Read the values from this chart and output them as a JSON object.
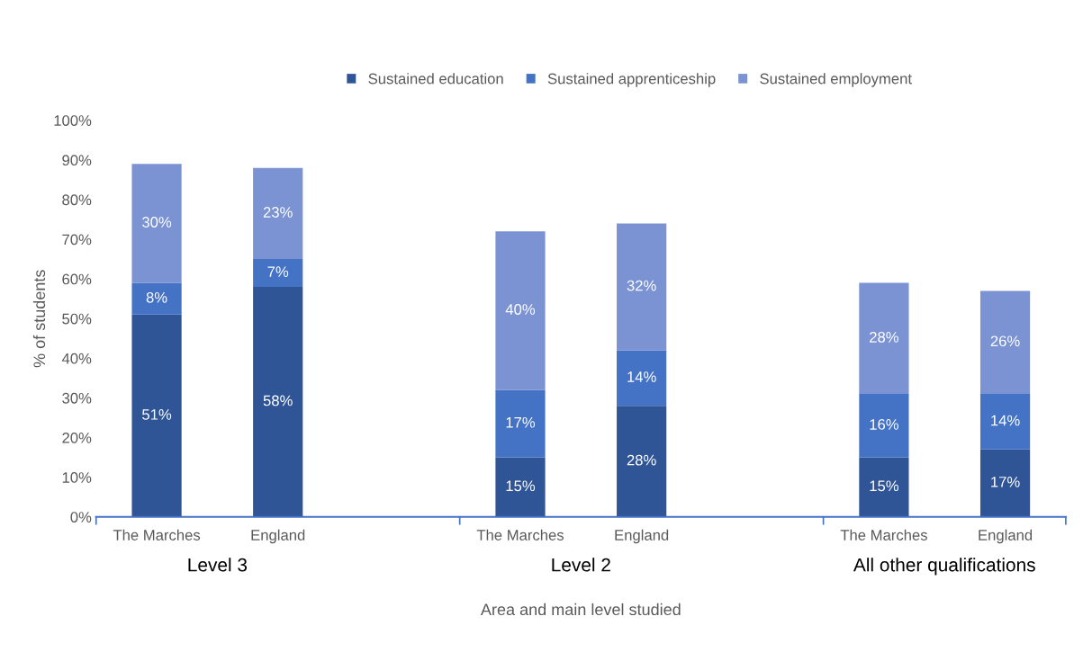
{
  "chart_data": {
    "type": "bar",
    "stacked": true,
    "categories": [
      "The Marches",
      "England",
      null,
      "The Marches",
      "England",
      null,
      "The Marches",
      "England"
    ],
    "series": [
      {
        "name": "Sustained education",
        "color": "#2f5597",
        "values": [
          51,
          58,
          null,
          15,
          28,
          null,
          15,
          17
        ],
        "value_labels": [
          "51%",
          "58%",
          null,
          "15%",
          "28%",
          null,
          "15%",
          "17%"
        ]
      },
      {
        "name": "Sustained apprenticeship",
        "color": "#4472c4",
        "values": [
          8,
          7,
          null,
          17,
          14,
          null,
          16,
          14
        ],
        "value_labels": [
          "8%",
          "7%",
          null,
          "17%",
          "14%",
          null,
          "16%",
          "14%"
        ]
      },
      {
        "name": "Sustained employment",
        "color": "#7b93d3",
        "values": [
          30,
          23,
          null,
          40,
          32,
          null,
          28,
          26
        ],
        "value_labels": [
          "30%",
          "23%",
          null,
          "40%",
          "32%",
          null,
          "28%",
          "26%"
        ]
      }
    ],
    "ylabel": "% of students",
    "xlabel": "Area and main level studied",
    "ylim": [
      0,
      100
    ],
    "yticks": [
      {
        "value": 0,
        "label": "0%"
      },
      {
        "value": 10,
        "label": "10%"
      },
      {
        "value": 20,
        "label": "20%"
      },
      {
        "value": 30,
        "label": "30%"
      },
      {
        "value": 40,
        "label": "40%"
      },
      {
        "value": 50,
        "label": "50%"
      },
      {
        "value": 60,
        "label": "60%"
      },
      {
        "value": 70,
        "label": "70%"
      },
      {
        "value": 80,
        "label": "80%"
      },
      {
        "value": 90,
        "label": "90%"
      },
      {
        "value": 100,
        "label": "100%"
      }
    ],
    "annotations": [
      "Level 3",
      "Level 2",
      "All other qualifications"
    ],
    "legend": "top",
    "grid": false
  }
}
